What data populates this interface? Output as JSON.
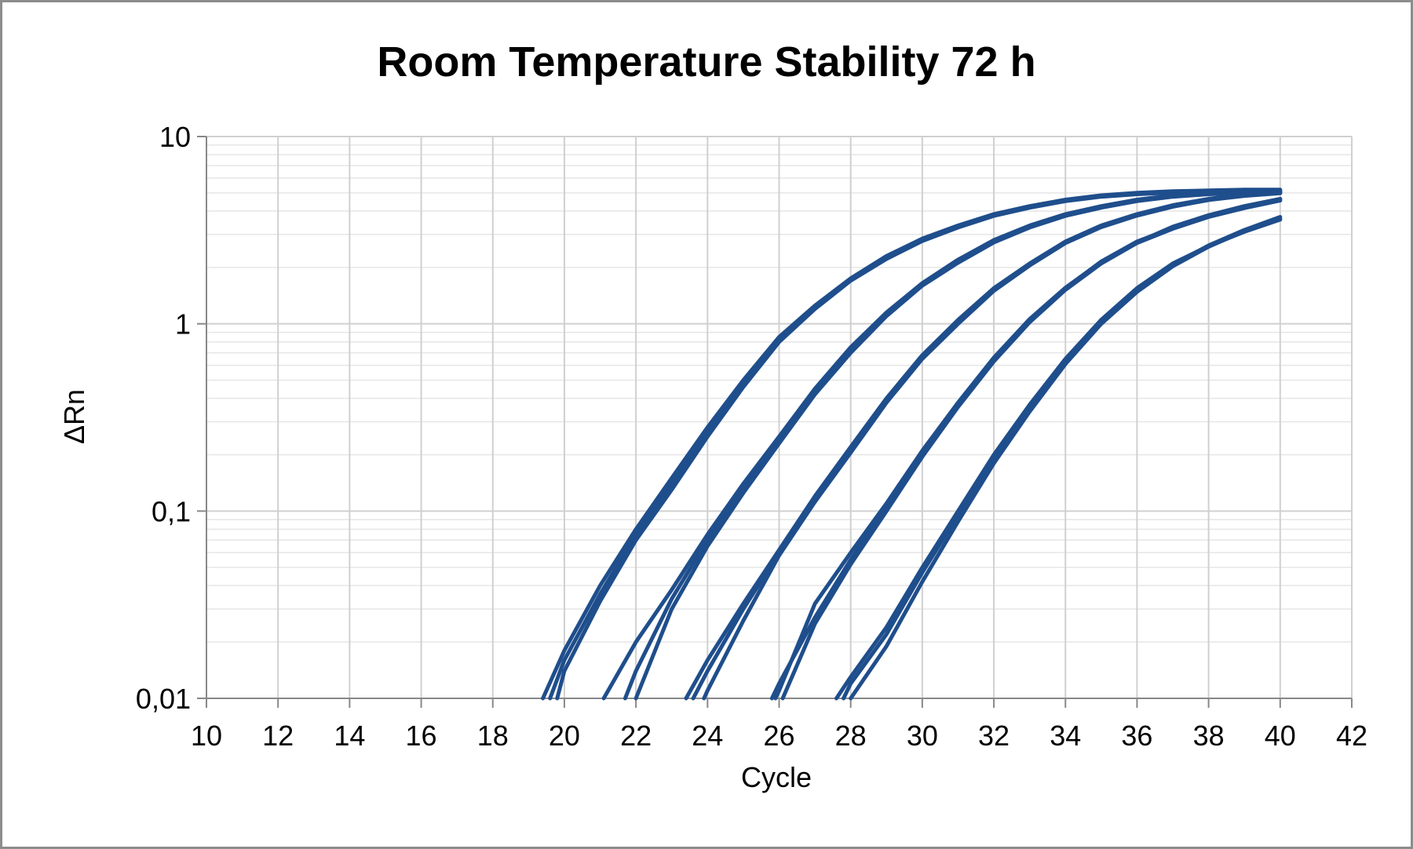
{
  "chart_data": {
    "type": "line",
    "title": "Room Temperature Stability 72 h",
    "xlabel": "Cycle",
    "ylabel": "ΔRn",
    "xlim": [
      10,
      42
    ],
    "ylim": [
      0.01,
      10
    ],
    "yscale": "log",
    "grid": true,
    "legend": "none",
    "x_ticks": [
      10,
      12,
      14,
      16,
      18,
      20,
      22,
      24,
      26,
      28,
      30,
      32,
      34,
      36,
      38,
      40,
      42
    ],
    "x_tick_labels": [
      "10",
      "12",
      "14",
      "16",
      "18",
      "20",
      "22",
      "24",
      "26",
      "28",
      "30",
      "32",
      "34",
      "36",
      "38",
      "40",
      "42"
    ],
    "y_ticks": [
      0.01,
      0.1,
      1,
      10
    ],
    "y_tick_labels": [
      "0,01",
      "0,1",
      "1",
      "10"
    ],
    "line_color": "#1f4e8c",
    "series": [
      {
        "points": [
          [
            19.4,
            0.01
          ],
          [
            20,
            0.018
          ],
          [
            21,
            0.04
          ],
          [
            22,
            0.08
          ],
          [
            23,
            0.15
          ],
          [
            24,
            0.28
          ],
          [
            25,
            0.5
          ],
          [
            26,
            0.85
          ],
          [
            27,
            1.25
          ],
          [
            28,
            1.75
          ],
          [
            29,
            2.3
          ],
          [
            30,
            2.85
          ],
          [
            31,
            3.35
          ],
          [
            32,
            3.85
          ],
          [
            33,
            4.25
          ],
          [
            34,
            4.6
          ],
          [
            35,
            4.85
          ],
          [
            36,
            5.0
          ],
          [
            37,
            5.1
          ],
          [
            38,
            5.15
          ],
          [
            39,
            5.2
          ],
          [
            40,
            5.2
          ]
        ]
      },
      {
        "points": [
          [
            19.6,
            0.01
          ],
          [
            20,
            0.016
          ],
          [
            21,
            0.036
          ],
          [
            22,
            0.075
          ],
          [
            23,
            0.14
          ],
          [
            24,
            0.26
          ],
          [
            25,
            0.48
          ],
          [
            26,
            0.82
          ],
          [
            27,
            1.22
          ],
          [
            28,
            1.72
          ],
          [
            29,
            2.25
          ],
          [
            30,
            2.8
          ],
          [
            31,
            3.3
          ],
          [
            32,
            3.8
          ],
          [
            33,
            4.2
          ],
          [
            34,
            4.55
          ],
          [
            35,
            4.8
          ],
          [
            36,
            4.95
          ],
          [
            37,
            5.05
          ],
          [
            38,
            5.1
          ],
          [
            39,
            5.15
          ],
          [
            40,
            5.15
          ]
        ]
      },
      {
        "points": [
          [
            19.8,
            0.01
          ],
          [
            20,
            0.014
          ],
          [
            21,
            0.033
          ],
          [
            22,
            0.07
          ],
          [
            23,
            0.13
          ],
          [
            24,
            0.25
          ],
          [
            25,
            0.46
          ],
          [
            26,
            0.8
          ],
          [
            27,
            1.2
          ],
          [
            28,
            1.7
          ],
          [
            29,
            2.22
          ],
          [
            30,
            2.77
          ],
          [
            31,
            3.27
          ],
          [
            32,
            3.77
          ],
          [
            33,
            4.17
          ],
          [
            34,
            4.52
          ],
          [
            35,
            4.77
          ],
          [
            36,
            4.92
          ],
          [
            37,
            5.02
          ],
          [
            38,
            5.08
          ],
          [
            39,
            5.12
          ],
          [
            40,
            5.12
          ]
        ]
      },
      {
        "points": [
          [
            21.1,
            0.01
          ],
          [
            22,
            0.02
          ],
          [
            23,
            0.038
          ],
          [
            24,
            0.075
          ],
          [
            25,
            0.14
          ],
          [
            26,
            0.25
          ],
          [
            27,
            0.45
          ],
          [
            28,
            0.75
          ],
          [
            29,
            1.15
          ],
          [
            30,
            1.65
          ],
          [
            31,
            2.2
          ],
          [
            32,
            2.8
          ],
          [
            33,
            3.35
          ],
          [
            34,
            3.85
          ],
          [
            35,
            4.25
          ],
          [
            36,
            4.6
          ],
          [
            37,
            4.85
          ],
          [
            38,
            5.0
          ],
          [
            39,
            5.05
          ],
          [
            40,
            5.1
          ]
        ]
      },
      {
        "points": [
          [
            21.7,
            0.01
          ],
          [
            22,
            0.014
          ],
          [
            23,
            0.034
          ],
          [
            24,
            0.07
          ],
          [
            25,
            0.13
          ],
          [
            26,
            0.24
          ],
          [
            27,
            0.43
          ],
          [
            28,
            0.72
          ],
          [
            29,
            1.12
          ],
          [
            30,
            1.62
          ],
          [
            31,
            2.15
          ],
          [
            32,
            2.75
          ],
          [
            33,
            3.3
          ],
          [
            34,
            3.8
          ],
          [
            35,
            4.2
          ],
          [
            36,
            4.55
          ],
          [
            37,
            4.8
          ],
          [
            38,
            4.95
          ],
          [
            39,
            5.02
          ],
          [
            40,
            5.05
          ]
        ]
      },
      {
        "points": [
          [
            22.0,
            0.01
          ],
          [
            23,
            0.03
          ],
          [
            24,
            0.065
          ],
          [
            25,
            0.125
          ],
          [
            26,
            0.23
          ],
          [
            27,
            0.42
          ],
          [
            28,
            0.7
          ],
          [
            29,
            1.1
          ],
          [
            30,
            1.6
          ],
          [
            31,
            2.12
          ],
          [
            32,
            2.72
          ],
          [
            33,
            3.27
          ],
          [
            34,
            3.77
          ],
          [
            35,
            4.17
          ],
          [
            36,
            4.52
          ],
          [
            37,
            4.77
          ],
          [
            38,
            4.92
          ],
          [
            39,
            5.0
          ],
          [
            40,
            5.02
          ]
        ]
      },
      {
        "points": [
          [
            23.4,
            0.01
          ],
          [
            24,
            0.016
          ],
          [
            25,
            0.032
          ],
          [
            26,
            0.062
          ],
          [
            27,
            0.12
          ],
          [
            28,
            0.22
          ],
          [
            29,
            0.4
          ],
          [
            30,
            0.68
          ],
          [
            31,
            1.05
          ],
          [
            32,
            1.55
          ],
          [
            33,
            2.1
          ],
          [
            34,
            2.75
          ],
          [
            35,
            3.35
          ],
          [
            36,
            3.85
          ],
          [
            37,
            4.3
          ],
          [
            38,
            4.65
          ],
          [
            39,
            4.9
          ],
          [
            40,
            5.05
          ]
        ]
      },
      {
        "points": [
          [
            23.6,
            0.01
          ],
          [
            24,
            0.014
          ],
          [
            25,
            0.03
          ],
          [
            26,
            0.06
          ],
          [
            27,
            0.115
          ],
          [
            28,
            0.21
          ],
          [
            29,
            0.39
          ],
          [
            30,
            0.66
          ],
          [
            31,
            1.02
          ],
          [
            32,
            1.52
          ],
          [
            33,
            2.07
          ],
          [
            34,
            2.72
          ],
          [
            35,
            3.3
          ],
          [
            36,
            3.8
          ],
          [
            37,
            4.25
          ],
          [
            38,
            4.6
          ],
          [
            39,
            4.85
          ],
          [
            40,
            5.0
          ]
        ]
      },
      {
        "points": [
          [
            23.9,
            0.01
          ],
          [
            24,
            0.011
          ],
          [
            25,
            0.026
          ],
          [
            26,
            0.058
          ],
          [
            27,
            0.112
          ],
          [
            28,
            0.205
          ],
          [
            29,
            0.38
          ],
          [
            30,
            0.65
          ],
          [
            31,
            1.0
          ],
          [
            32,
            1.5
          ],
          [
            33,
            2.05
          ],
          [
            34,
            2.7
          ],
          [
            35,
            3.28
          ],
          [
            36,
            3.78
          ],
          [
            37,
            4.22
          ],
          [
            38,
            4.58
          ],
          [
            39,
            4.82
          ],
          [
            40,
            4.98
          ]
        ]
      },
      {
        "points": [
          [
            25.8,
            0.01
          ],
          [
            26,
            0.012
          ],
          [
            27,
            0.027
          ],
          [
            28,
            0.055
          ],
          [
            29,
            0.105
          ],
          [
            30,
            0.2
          ],
          [
            31,
            0.37
          ],
          [
            32,
            0.65
          ],
          [
            33,
            1.05
          ],
          [
            34,
            1.55
          ],
          [
            35,
            2.15
          ],
          [
            36,
            2.75
          ],
          [
            37,
            3.25
          ],
          [
            38,
            3.75
          ],
          [
            39,
            4.2
          ],
          [
            40,
            4.6
          ]
        ]
      },
      {
        "points": [
          [
            25.9,
            0.01
          ],
          [
            26,
            0.011
          ],
          [
            27,
            0.032
          ],
          [
            28,
            0.06
          ],
          [
            29,
            0.11
          ],
          [
            30,
            0.21
          ],
          [
            31,
            0.38
          ],
          [
            32,
            0.66
          ],
          [
            33,
            1.06
          ],
          [
            34,
            1.56
          ],
          [
            35,
            2.14
          ],
          [
            36,
            2.72
          ],
          [
            37,
            3.3
          ],
          [
            38,
            3.8
          ],
          [
            39,
            4.25
          ],
          [
            40,
            4.65
          ]
        ]
      },
      {
        "points": [
          [
            26.1,
            0.01
          ],
          [
            27,
            0.025
          ],
          [
            28,
            0.052
          ],
          [
            29,
            0.1
          ],
          [
            30,
            0.195
          ],
          [
            31,
            0.36
          ],
          [
            32,
            0.63
          ],
          [
            33,
            1.02
          ],
          [
            34,
            1.52
          ],
          [
            35,
            2.1
          ],
          [
            36,
            2.7
          ],
          [
            37,
            3.22
          ],
          [
            38,
            3.72
          ],
          [
            39,
            4.15
          ],
          [
            40,
            4.55
          ]
        ]
      },
      {
        "points": [
          [
            27.6,
            0.01
          ],
          [
            28,
            0.013
          ],
          [
            29,
            0.024
          ],
          [
            30,
            0.05
          ],
          [
            31,
            0.1
          ],
          [
            32,
            0.2
          ],
          [
            33,
            0.37
          ],
          [
            34,
            0.65
          ],
          [
            35,
            1.05
          ],
          [
            36,
            1.55
          ],
          [
            37,
            2.1
          ],
          [
            38,
            2.6
          ],
          [
            39,
            3.1
          ],
          [
            40,
            3.6
          ]
        ]
      },
      {
        "points": [
          [
            27.8,
            0.01
          ],
          [
            28,
            0.012
          ],
          [
            29,
            0.022
          ],
          [
            30,
            0.047
          ],
          [
            31,
            0.095
          ],
          [
            32,
            0.19
          ],
          [
            33,
            0.355
          ],
          [
            34,
            0.63
          ],
          [
            35,
            1.02
          ],
          [
            36,
            1.52
          ],
          [
            37,
            2.07
          ],
          [
            38,
            2.62
          ],
          [
            39,
            3.17
          ],
          [
            40,
            3.72
          ]
        ]
      },
      {
        "points": [
          [
            28.0,
            0.01
          ],
          [
            29,
            0.019
          ],
          [
            30,
            0.042
          ],
          [
            31,
            0.088
          ],
          [
            32,
            0.18
          ],
          [
            33,
            0.34
          ],
          [
            34,
            0.61
          ],
          [
            35,
            1.0
          ],
          [
            36,
            1.48
          ],
          [
            37,
            2.03
          ],
          [
            38,
            2.58
          ],
          [
            39,
            3.13
          ],
          [
            40,
            3.65
          ]
        ]
      }
    ]
  }
}
